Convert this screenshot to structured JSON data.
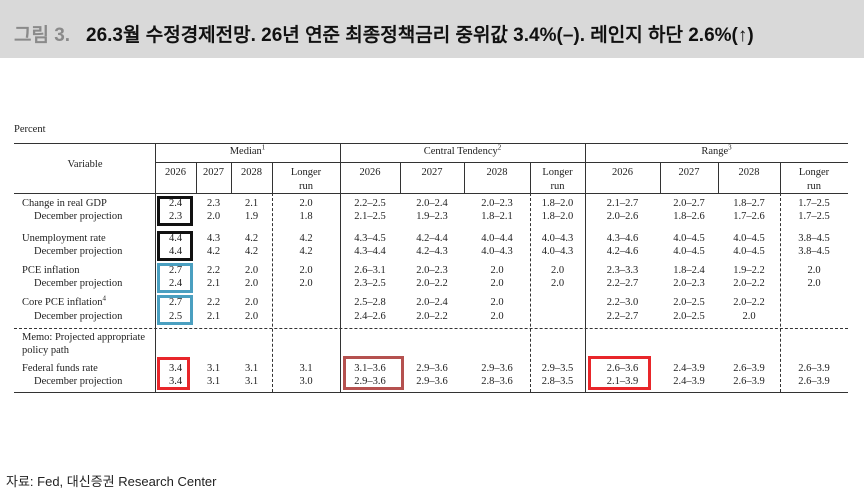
{
  "header": {
    "label": "그림 3.",
    "title": "26.3월 수정경제전망. 26년 연준 최종정책금리 중위값 3.4%(–). 레인지 하단 2.6%(↑)"
  },
  "table": {
    "unit": "Percent",
    "variable_header": "Variable",
    "columns": [
      "2026",
      "2027",
      "2028",
      "Longer run"
    ],
    "groups": [
      {
        "name": "Median",
        "note": "1"
      },
      {
        "name": "Central Tendency",
        "note": "2"
      },
      {
        "name": "Range",
        "note": "3"
      }
    ],
    "rows": [
      {
        "label": "Change in real GDP",
        "values": [
          "2.4",
          "2.3",
          "2.1",
          "2.0",
          "2.2–2.5",
          "2.0–2.4",
          "2.0–2.3",
          "1.8–2.0",
          "2.1–2.7",
          "2.0–2.7",
          "1.8–2.7",
          "1.7–2.5"
        ]
      },
      {
        "label": "December projection",
        "values": [
          "2.3",
          "2.0",
          "1.9",
          "1.8",
          "2.1–2.5",
          "1.9–2.3",
          "1.8–2.1",
          "1.8–2.0",
          "2.0–2.6",
          "1.8–2.6",
          "1.7–2.6",
          "1.7–2.5"
        ]
      },
      {
        "label": "Unemployment rate",
        "values": [
          "4.4",
          "4.3",
          "4.2",
          "4.2",
          "4.3–4.5",
          "4.2–4.4",
          "4.0–4.4",
          "4.0–4.3",
          "4.3–4.6",
          "4.0–4.5",
          "4.0–4.5",
          "3.8–4.5"
        ]
      },
      {
        "label": "December projection",
        "values": [
          "4.4",
          "4.2",
          "4.2",
          "4.2",
          "4.3–4.4",
          "4.2–4.3",
          "4.0–4.3",
          "4.0–4.3",
          "4.2–4.6",
          "4.0–4.5",
          "4.0–4.5",
          "3.8–4.5"
        ]
      },
      {
        "label": "PCE inflation",
        "values": [
          "2.7",
          "2.2",
          "2.0",
          "2.0",
          "2.6–3.1",
          "2.0–2.3",
          "2.0",
          "2.0",
          "2.3–3.3",
          "1.8–2.4",
          "1.9–2.2",
          "2.0"
        ]
      },
      {
        "label": "December projection",
        "values": [
          "2.4",
          "2.1",
          "2.0",
          "2.0",
          "2.3–2.5",
          "2.0–2.2",
          "2.0",
          "2.0",
          "2.2–2.7",
          "2.0–2.3",
          "2.0–2.2",
          "2.0"
        ]
      },
      {
        "label": "Core PCE inflation",
        "note": "4",
        "values": [
          "2.7",
          "2.2",
          "2.0",
          null,
          "2.5–2.8",
          "2.0–2.4",
          "2.0",
          null,
          "2.2–3.0",
          "2.0–2.5",
          "2.0–2.2",
          null
        ]
      },
      {
        "label": "December projection",
        "values": [
          "2.5",
          "2.1",
          "2.0",
          null,
          "2.4–2.6",
          "2.0–2.2",
          "2.0",
          null,
          "2.2–2.7",
          "2.0–2.5",
          "2.0",
          null
        ]
      },
      {
        "label": "Federal funds rate",
        "values": [
          "3.4",
          "3.1",
          "3.1",
          "3.1",
          "3.1–3.6",
          "2.9–3.6",
          "2.9–3.6",
          "2.9–3.5",
          "2.6–3.6",
          "2.4–3.9",
          "2.6–3.9",
          "2.6–3.9"
        ]
      },
      {
        "label": "December projection",
        "values": [
          "3.4",
          "3.1",
          "3.1",
          "3.0",
          "2.9–3.6",
          "2.9–3.6",
          "2.8–3.6",
          "2.8–3.5",
          "2.1–3.9",
          "2.4–3.9",
          "2.6–3.9",
          "2.6–3.9"
        ]
      }
    ],
    "memo": "Memo: Projected appropriate policy path"
  },
  "footer": {
    "source": "자료: Fed, 대신증권 Research Center"
  }
}
